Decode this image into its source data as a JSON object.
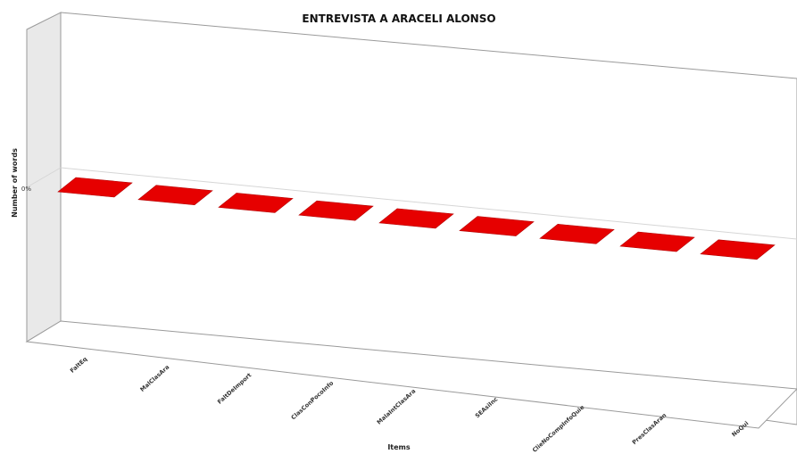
{
  "chart_data": {
    "type": "bar",
    "title": "ENTREVISTA A ARACELI ALONSO",
    "xlabel": "Items",
    "ylabel": "Number of words",
    "categories": [
      "FaltEq",
      "MalClasAra",
      "FaltDeImport",
      "ClasConPocoInfo",
      "MalaIntClasAra",
      "SEAsiInc",
      "ClieNoCompInfoQuie",
      "PresClasAran",
      "NoQui"
    ],
    "values": [
      0,
      0,
      0,
      0,
      0,
      0,
      0,
      0,
      0
    ],
    "y_tick_labels": [
      "0%"
    ],
    "bar_color": "#e60000",
    "grid": true,
    "legend": "none",
    "projection": "3d"
  }
}
